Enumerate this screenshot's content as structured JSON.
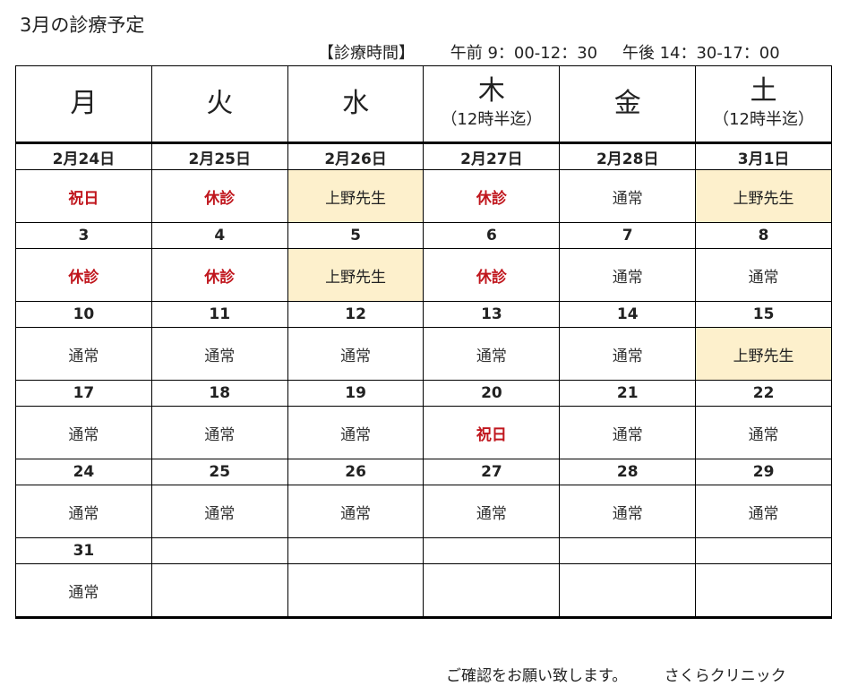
{
  "title": "3月の診療予定",
  "hours": {
    "label": "【診療時間】",
    "morning": "午前 9：00-12：30",
    "afternoon": "午後 14：30-17：00"
  },
  "weekdays": [
    {
      "main": "月",
      "sub": ""
    },
    {
      "main": "火",
      "sub": ""
    },
    {
      "main": "水",
      "sub": ""
    },
    {
      "main": "木",
      "sub": "（12時半迄）"
    },
    {
      "main": "金",
      "sub": ""
    },
    {
      "main": "土",
      "sub": "（12時半迄）"
    }
  ],
  "weeks": [
    {
      "dates": [
        "2月24日",
        "2月25日",
        "2月26日",
        "2月27日",
        "2月28日",
        "3月1日"
      ],
      "status": [
        "祝日",
        "休診",
        "上野先生",
        "休診",
        "通常",
        "上野先生"
      ],
      "kinds": [
        "holiday",
        "closed",
        "ueno",
        "closed",
        "normal",
        "ueno"
      ]
    },
    {
      "dates": [
        "3",
        "4",
        "5",
        "6",
        "7",
        "8"
      ],
      "status": [
        "休診",
        "休診",
        "上野先生",
        "休診",
        "通常",
        "通常"
      ],
      "kinds": [
        "closed",
        "closed",
        "ueno",
        "closed",
        "normal",
        "normal"
      ]
    },
    {
      "dates": [
        "10",
        "11",
        "12",
        "13",
        "14",
        "15"
      ],
      "status": [
        "通常",
        "通常",
        "通常",
        "通常",
        "通常",
        "上野先生"
      ],
      "kinds": [
        "normal",
        "normal",
        "normal",
        "normal",
        "normal",
        "ueno"
      ]
    },
    {
      "dates": [
        "17",
        "18",
        "19",
        "20",
        "21",
        "22"
      ],
      "status": [
        "通常",
        "通常",
        "通常",
        "祝日",
        "通常",
        "通常"
      ],
      "kinds": [
        "normal",
        "normal",
        "normal",
        "holiday",
        "normal",
        "normal"
      ]
    },
    {
      "dates": [
        "24",
        "25",
        "26",
        "27",
        "28",
        "29"
      ],
      "status": [
        "通常",
        "通常",
        "通常",
        "通常",
        "通常",
        "通常"
      ],
      "kinds": [
        "normal",
        "normal",
        "normal",
        "normal",
        "normal",
        "normal"
      ]
    },
    {
      "dates": [
        "31",
        "",
        "",
        "",
        "",
        ""
      ],
      "status": [
        "通常",
        "",
        "",
        "",
        "",
        ""
      ],
      "kinds": [
        "normal",
        "empty",
        "empty",
        "empty",
        "empty",
        "empty"
      ]
    }
  ],
  "colors": {
    "holiday_text": "#c0161d",
    "ueno_background": "#fdf0cc"
  },
  "footer": {
    "message": "ご確認をお願い致します。",
    "clinic": "さくらクリニック"
  }
}
